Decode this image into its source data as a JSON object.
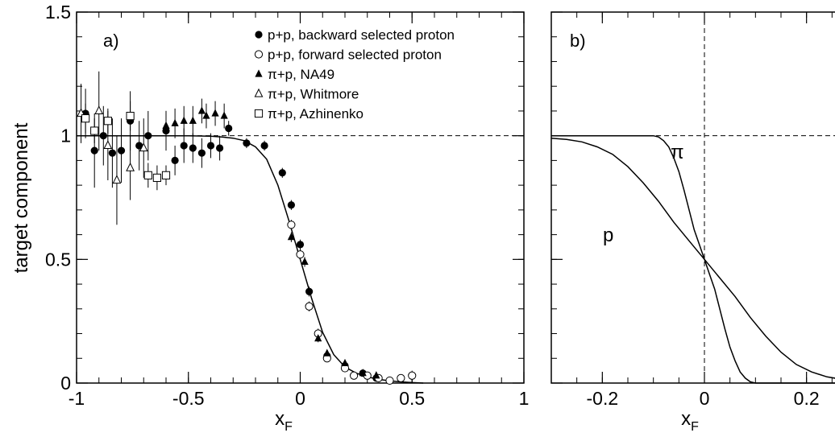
{
  "chart_data": [
    {
      "type": "scatter",
      "panel_label": "a)",
      "ylabel": "target component",
      "xlabel": "x",
      "xlabel_subscript": "F",
      "xlim": [
        -1,
        1
      ],
      "ylim": [
        0,
        1.5
      ],
      "x_ticks": [
        "-1",
        "-0.5",
        "0",
        "0.5",
        "1"
      ],
      "y_ticks": [
        "0",
        "0.5",
        "1",
        "1.5"
      ],
      "reference_line": {
        "y": 1,
        "style": "dashed"
      },
      "legend_position": "top-right",
      "fit_curve": {
        "x": [
          -1.0,
          -0.9,
          -0.8,
          -0.7,
          -0.6,
          -0.5,
          -0.4,
          -0.35,
          -0.3,
          -0.25,
          -0.2,
          -0.15,
          -0.1,
          -0.05,
          0.0,
          0.05,
          0.1,
          0.15,
          0.2,
          0.25,
          0.3,
          0.35,
          0.4,
          0.45,
          0.5,
          0.55
        ],
        "y": [
          1.0,
          1.0,
          1.0,
          1.0,
          1.0,
          1.0,
          0.998,
          0.995,
          0.99,
          0.98,
          0.955,
          0.905,
          0.8,
          0.655,
          0.5,
          0.345,
          0.205,
          0.115,
          0.065,
          0.04,
          0.025,
          0.015,
          0.009,
          0.005,
          0.002,
          0.0
        ]
      },
      "series": [
        {
          "name": "p+p, backward selected proton",
          "marker": "filled-circle",
          "points": [
            {
              "x": -0.96,
              "y": 1.09,
              "err": 0.1
            },
            {
              "x": -0.92,
              "y": 0.94,
              "err": 0.15
            },
            {
              "x": -0.88,
              "y": 1.0,
              "err": 0.12
            },
            {
              "x": -0.84,
              "y": 0.93,
              "err": 0.14
            },
            {
              "x": -0.8,
              "y": 0.94,
              "err": 0.13
            },
            {
              "x": -0.76,
              "y": 1.06,
              "err": 0.12
            },
            {
              "x": -0.72,
              "y": 0.96,
              "err": 0.1
            },
            {
              "x": -0.68,
              "y": 1.0,
              "err": 0.1
            },
            {
              "x": -0.6,
              "y": 1.02,
              "err": 0.08
            },
            {
              "x": -0.56,
              "y": 0.9,
              "err": 0.06
            },
            {
              "x": -0.52,
              "y": 0.96,
              "err": 0.07
            },
            {
              "x": -0.48,
              "y": 0.95,
              "err": 0.06
            },
            {
              "x": -0.44,
              "y": 0.93,
              "err": 0.06
            },
            {
              "x": -0.4,
              "y": 0.96,
              "err": 0.05
            },
            {
              "x": -0.36,
              "y": 0.95,
              "err": 0.05
            },
            {
              "x": -0.32,
              "y": 1.03,
              "err": 0.03
            },
            {
              "x": -0.24,
              "y": 0.97,
              "err": 0.02
            },
            {
              "x": -0.16,
              "y": 0.96,
              "err": 0.02
            },
            {
              "x": -0.08,
              "y": 0.85,
              "err": 0.02
            },
            {
              "x": -0.04,
              "y": 0.72,
              "err": 0.02
            },
            {
              "x": 0.0,
              "y": 0.56,
              "err": 0.02
            },
            {
              "x": 0.04,
              "y": 0.37,
              "err": 0.02
            },
            {
              "x": 0.12,
              "y": 0.11,
              "err": 0.015
            },
            {
              "x": 0.2,
              "y": 0.07,
              "err": 0.01
            },
            {
              "x": 0.28,
              "y": 0.04,
              "err": 0.01
            },
            {
              "x": 0.34,
              "y": 0.02,
              "err": 0.01
            }
          ]
        },
        {
          "name": "p+p, forward selected proton",
          "marker": "open-circle",
          "points": [
            {
              "x": -0.04,
              "y": 0.64,
              "err": 0.02
            },
            {
              "x": 0.0,
              "y": 0.52,
              "err": 0.02
            },
            {
              "x": 0.04,
              "y": 0.31,
              "err": 0.02
            },
            {
              "x": 0.08,
              "y": 0.2,
              "err": 0.02
            },
            {
              "x": 0.12,
              "y": 0.1,
              "err": 0.015
            },
            {
              "x": 0.2,
              "y": 0.06,
              "err": 0.01
            },
            {
              "x": 0.24,
              "y": 0.03,
              "err": 0.01
            },
            {
              "x": 0.3,
              "y": 0.03,
              "err": 0.01
            },
            {
              "x": 0.35,
              "y": 0.02,
              "err": 0.01
            },
            {
              "x": 0.4,
              "y": 0.01,
              "err": 0.01
            },
            {
              "x": 0.45,
              "y": 0.02,
              "err": 0.01
            },
            {
              "x": 0.5,
              "y": 0.03,
              "err": 0.02
            }
          ]
        },
        {
          "name": "π+p, NA49",
          "marker": "filled-triangle",
          "points": [
            {
              "x": -0.6,
              "y": 1.04,
              "err": 0.06
            },
            {
              "x": -0.56,
              "y": 1.05,
              "err": 0.06
            },
            {
              "x": -0.52,
              "y": 1.06,
              "err": 0.06
            },
            {
              "x": -0.48,
              "y": 1.06,
              "err": 0.06
            },
            {
              "x": -0.44,
              "y": 1.1,
              "err": 0.05
            },
            {
              "x": -0.42,
              "y": 1.08,
              "err": 0.05
            },
            {
              "x": -0.38,
              "y": 1.09,
              "err": 0.05
            },
            {
              "x": -0.34,
              "y": 1.08,
              "err": 0.05
            },
            {
              "x": -0.04,
              "y": 0.59,
              "err": 0.02
            },
            {
              "x": 0.02,
              "y": 0.49,
              "err": 0.02
            },
            {
              "x": 0.08,
              "y": 0.18,
              "err": 0.015
            },
            {
              "x": 0.12,
              "y": 0.12,
              "err": 0.01
            },
            {
              "x": 0.2,
              "y": 0.08,
              "err": 0.01
            },
            {
              "x": 0.28,
              "y": 0.04,
              "err": 0.01
            },
            {
              "x": 0.34,
              "y": 0.03,
              "err": 0.01
            }
          ]
        },
        {
          "name": "π+p, Whitmore",
          "marker": "open-triangle",
          "points": [
            {
              "x": -0.98,
              "y": 1.09,
              "err": 0.12
            },
            {
              "x": -0.9,
              "y": 1.1,
              "err": 0.16
            },
            {
              "x": -0.86,
              "y": 0.96,
              "err": 0.14
            },
            {
              "x": -0.82,
              "y": 0.82,
              "err": 0.18
            },
            {
              "x": -0.76,
              "y": 0.87,
              "err": 0.13
            },
            {
              "x": -0.7,
              "y": 0.95,
              "err": 0.12
            }
          ]
        },
        {
          "name": "π+p, Azhinenko",
          "marker": "open-square",
          "points": [
            {
              "x": -0.96,
              "y": 1.07,
              "err": 0.06
            },
            {
              "x": -0.92,
              "y": 1.02,
              "err": 0.05
            },
            {
              "x": -0.86,
              "y": 1.06,
              "err": 0.05
            },
            {
              "x": -0.76,
              "y": 1.08,
              "err": 0.06
            },
            {
              "x": -0.68,
              "y": 0.84,
              "err": 0.05
            },
            {
              "x": -0.64,
              "y": 0.83,
              "err": 0.05
            },
            {
              "x": -0.6,
              "y": 0.84,
              "err": 0.04
            }
          ]
        }
      ]
    },
    {
      "type": "line",
      "panel_label": "b)",
      "xlabel": "x",
      "xlabel_subscript": "F",
      "xlim": [
        -0.3,
        0.3
      ],
      "ylim": [
        0,
        1.5
      ],
      "x_ticks": [
        "-0.2",
        "0",
        "0.2"
      ],
      "reference_lines": [
        {
          "y": 1,
          "style": "dashed"
        },
        {
          "x": 0,
          "style": "dashed"
        }
      ],
      "series": [
        {
          "name": "p",
          "x": [
            -0.3,
            -0.27,
            -0.24,
            -0.21,
            -0.18,
            -0.15,
            -0.12,
            -0.09,
            -0.06,
            -0.03,
            0.0,
            0.03,
            0.06,
            0.09,
            0.12,
            0.15,
            0.18,
            0.21,
            0.24,
            0.27,
            0.3
          ],
          "y": [
            0.99,
            0.985,
            0.975,
            0.955,
            0.925,
            0.875,
            0.81,
            0.735,
            0.65,
            0.575,
            0.5,
            0.425,
            0.35,
            0.265,
            0.19,
            0.125,
            0.075,
            0.045,
            0.025,
            0.015,
            0.01
          ]
        },
        {
          "name": "π",
          "x": [
            -0.3,
            -0.1,
            -0.09,
            -0.08,
            -0.07,
            -0.06,
            -0.05,
            -0.04,
            -0.03,
            -0.02,
            -0.01,
            0.0,
            0.01,
            0.02,
            0.03,
            0.04,
            0.05,
            0.06,
            0.07,
            0.08,
            0.09,
            0.1,
            0.3
          ],
          "y": [
            1.0,
            1.0,
            0.995,
            0.98,
            0.955,
            0.91,
            0.855,
            0.78,
            0.7,
            0.62,
            0.56,
            0.5,
            0.44,
            0.38,
            0.3,
            0.22,
            0.145,
            0.09,
            0.045,
            0.02,
            0.005,
            0.0,
            0.0
          ]
        }
      ]
    }
  ]
}
